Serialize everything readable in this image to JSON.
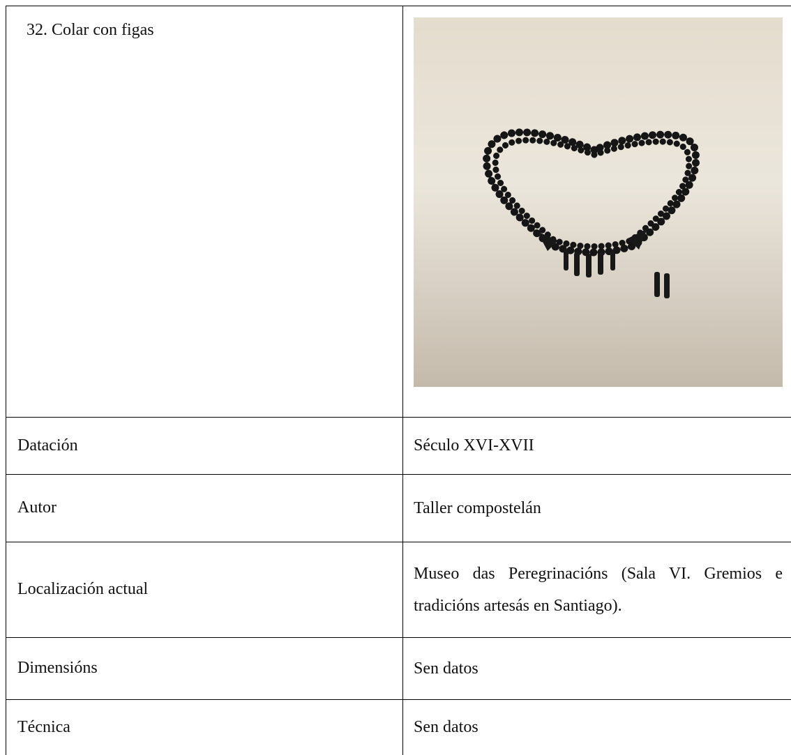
{
  "title": "32. Colar con figas",
  "table": {
    "rows": [
      [
        "Datación",
        "Século XVI-XVII"
      ],
      [
        "Autor",
        "Taller compostelán"
      ],
      [
        "Localización actual",
        "Museo das Peregrinacións (Sala VI. Gremios e tradicións artesás en Santiago)."
      ],
      [
        "Dimensións",
        "Sen datos"
      ],
      [
        "Técnica",
        "Sen datos"
      ]
    ]
  }
}
